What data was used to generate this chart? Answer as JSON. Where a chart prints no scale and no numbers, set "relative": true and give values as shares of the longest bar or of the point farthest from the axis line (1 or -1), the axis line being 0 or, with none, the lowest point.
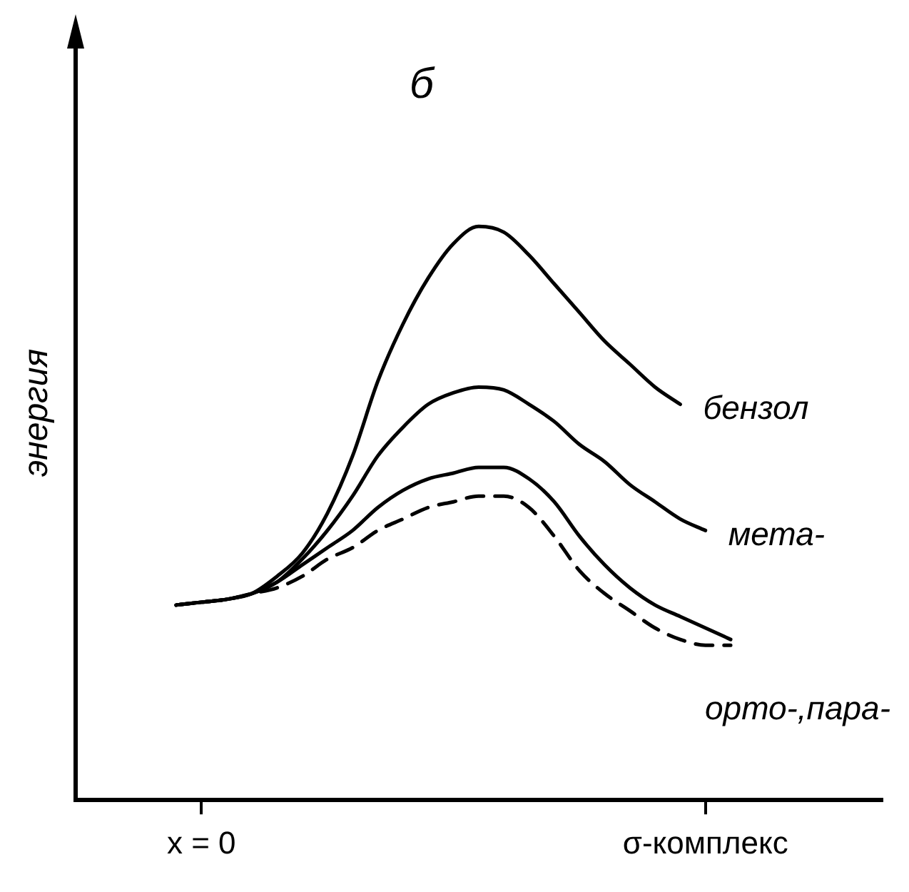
{
  "chart_data": {
    "type": "line",
    "title": "б",
    "ylabel": "энергия",
    "relative": true,
    "tick_labels": "x",
    "grid": false,
    "marker": "none",
    "categories": [
      null,
      null,
      null,
      null,
      null,
      "x = 0",
      null,
      null,
      null,
      null,
      null,
      null,
      null,
      null,
      null,
      null,
      null,
      null,
      null,
      null,
      null,
      null,
      null,
      null,
      null,
      "σ-комплекс",
      null,
      null,
      null,
      null,
      null,
      null,
      null
    ],
    "series": [
      {
        "name": "бензол",
        "color": "#000000",
        "line_style": "solid",
        "values": [
          null,
          null,
          null,
          null,
          0.34,
          0.345,
          0.35,
          0.36,
          0.39,
          0.43,
          0.5,
          0.6,
          0.73,
          0.83,
          0.91,
          0.97,
          1,
          0.99,
          0.95,
          0.9,
          0.85,
          0.8,
          0.76,
          0.72,
          0.69,
          null,
          null,
          null,
          null,
          null,
          null,
          null,
          null
        ]
      },
      {
        "name": "мета-",
        "color": "#000000",
        "line_style": "solid",
        "values": [
          null,
          null,
          null,
          null,
          0.34,
          0.345,
          0.35,
          0.36,
          0.38,
          0.42,
          0.47,
          0.53,
          0.6,
          0.65,
          0.69,
          0.71,
          0.72,
          0.715,
          0.69,
          0.66,
          0.62,
          0.59,
          0.55,
          0.52,
          0.49,
          0.47,
          null,
          null,
          null,
          null,
          null,
          null,
          null
        ]
      },
      {
        "name": "орто-,пара-",
        "color": "#000000",
        "line_style": "solid",
        "values": [
          null,
          null,
          null,
          null,
          0.34,
          0.345,
          0.35,
          0.36,
          0.38,
          0.41,
          0.44,
          0.47,
          0.51,
          0.54,
          0.56,
          0.57,
          0.58,
          0.58,
          0.56,
          0.52,
          0.46,
          0.41,
          0.37,
          0.34,
          0.32,
          0.3,
          0.28,
          null,
          null,
          null,
          null,
          null,
          null
        ]
      },
      {
        "color": "#000000",
        "line_style": "dashed",
        "values": [
          null,
          null,
          null,
          null,
          0.34,
          0.345,
          0.35,
          0.36,
          0.37,
          0.39,
          0.42,
          0.44,
          0.47,
          0.49,
          0.51,
          0.52,
          0.53,
          0.53,
          0.51,
          0.46,
          0.4,
          0.36,
          0.33,
          0.3,
          0.28,
          0.27,
          0.27,
          null,
          null,
          null,
          null,
          null,
          null
        ]
      }
    ]
  }
}
